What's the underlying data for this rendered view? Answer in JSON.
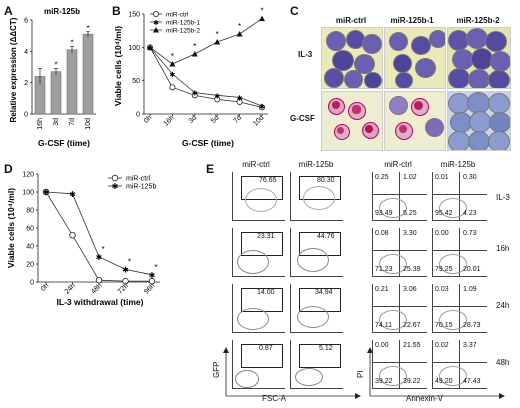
{
  "panels": {
    "A": {
      "label": "A",
      "chart_data": {
        "type": "bar",
        "title": "miR-125b",
        "ylabel": "Relative expression (ΔΔCT)",
        "xlabel": "G-CSF (time)",
        "categories": [
          "16h",
          "3d",
          "7d",
          "10d"
        ],
        "values": [
          2.4,
          2.7,
          4.1,
          5.1
        ],
        "errors": [
          0.5,
          0.2,
          0.2,
          0.15
        ],
        "significant": [
          false,
          true,
          true,
          true
        ],
        "sig_symbol": "*",
        "ylim": [
          0,
          6
        ],
        "yticks": [
          "0",
          "2",
          "4",
          "6"
        ],
        "color": "#9e9e9e"
      }
    },
    "B": {
      "label": "B",
      "chart_data": {
        "type": "line",
        "ylabel": "Viable cells (10⁴/ml)",
        "xlabel": "G-CSF (time)",
        "categories": [
          "0h",
          "16h",
          "3d",
          "5d",
          "7d",
          "10d"
        ],
        "ylim": [
          0,
          150
        ],
        "yticks": [
          "0",
          "50",
          "100",
          "150"
        ],
        "sig_symbol": "*",
        "series": [
          {
            "name": "miR-ctrl",
            "values": [
              100,
              40,
              28,
              22,
              18,
              10
            ],
            "marker": "open-circle",
            "sig": [
              false,
              false,
              false,
              false,
              false,
              false
            ]
          },
          {
            "name": "miR-125b-1",
            "values": [
              100,
              60,
              32,
              28,
              25,
              12
            ],
            "marker": "star",
            "sig": [
              false,
              false,
              false,
              false,
              false,
              false
            ]
          },
          {
            "name": "miR-125b-2",
            "values": [
              100,
              75,
              90,
              108,
              120,
              143
            ],
            "marker": "triangle",
            "sig": [
              false,
              true,
              true,
              true,
              true,
              true
            ]
          }
        ]
      }
    },
    "C": {
      "label": "C",
      "columns": [
        "miR-ctrl",
        "miR-125b-1",
        "miR-125b-2"
      ],
      "rows": [
        "IL-3",
        "G-CSF"
      ]
    },
    "D": {
      "label": "D",
      "chart_data": {
        "type": "line",
        "ylabel": "Viable cells (10⁴/ml)",
        "xlabel": "IL-3 withdrawal (time)",
        "categories": [
          "0h",
          "24h",
          "48h",
          "72h",
          "96h"
        ],
        "ylim": [
          0,
          120
        ],
        "yticks": [
          "0",
          "20",
          "40",
          "60",
          "80",
          "100",
          "120"
        ],
        "sig_symbol": "*",
        "series": [
          {
            "name": "miR-ctrl",
            "values": [
              100,
              52,
              2,
              1,
              1
            ],
            "marker": "open-circle"
          },
          {
            "name": "miR-125b",
            "values": [
              100,
              98,
              28,
              14,
              8
            ],
            "marker": "star"
          }
        ],
        "significant": [
          false,
          false,
          true,
          true,
          true
        ]
      }
    },
    "E": {
      "label": "E",
      "gfp_columns": [
        "miR-ctrl",
        "miR-125b"
      ],
      "pi_columns": [
        "miR-ctrl",
        "miR-125b"
      ],
      "time_labels": [
        "IL-3",
        "16h",
        "24h",
        "48h"
      ],
      "gfp_values": [
        [
          "76.65",
          "80.30"
        ],
        [
          "23.31",
          "44.76"
        ],
        [
          "14.00",
          "34.94"
        ],
        [
          "0.87",
          "5.12"
        ]
      ],
      "pi_quadrants": [
        [
          [
            "0.25",
            "1.02",
            "93.49",
            "5.25"
          ],
          [
            "0.01",
            "0.30",
            "95.42",
            "4.23"
          ]
        ],
        [
          [
            "0.08",
            "3.30",
            "71.23",
            "25.39"
          ],
          [
            "0.00",
            "0.73",
            "79.25",
            "20.01"
          ]
        ],
        [
          [
            "0.21",
            "3.06",
            "74.11",
            "22.67"
          ],
          [
            "0.03",
            "1.09",
            "70.15",
            "28.73"
          ]
        ],
        [
          [
            "0.00",
            "21.55",
            "39.22",
            "39.22"
          ],
          [
            "0.02",
            "3.37",
            "49.20",
            "47.43"
          ]
        ]
      ],
      "gfp_y_axis": "GFP",
      "gfp_x_axis": "FSC-A",
      "pi_y_axis": "PI",
      "pi_x_axis": "Annexin-V"
    }
  },
  "colors": {
    "bar": "#9e9e9e",
    "wright_giemsa_cyto": "#6a5fb0",
    "nucleus": "#3d2c85",
    "granulocyte": "#c4306b",
    "background_slide": "#e9e7b8"
  }
}
